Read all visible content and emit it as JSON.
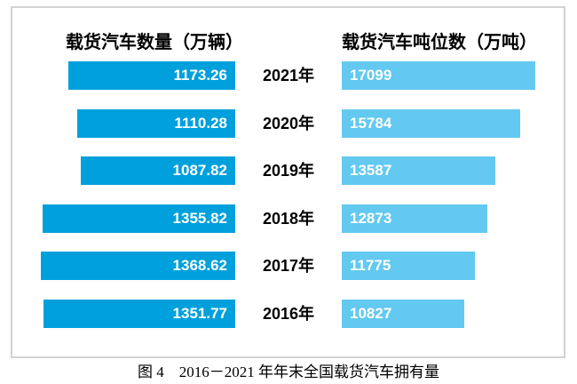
{
  "header": {
    "left_title": "载货汽车数量（万辆）",
    "right_title": "载货汽车吨位数（万吨）"
  },
  "caption": "图 4　2016－2021 年年末全国载货汽车拥有量",
  "colors": {
    "truck_count_bar": "#00A0DC",
    "tonnage_bar": "#63C9F0",
    "frame_border": "#d2d2d2",
    "bar_value_text": "#ffffff"
  },
  "rows": [
    {
      "year": "2021年",
      "count_label": "1173.26",
      "tonnage_label": "17099"
    },
    {
      "year": "2020年",
      "count_label": "1110.28",
      "tonnage_label": "15784"
    },
    {
      "year": "2019年",
      "count_label": "1087.82",
      "tonnage_label": "13587"
    },
    {
      "year": "2018年",
      "count_label": "1355.82",
      "tonnage_label": "12873"
    },
    {
      "year": "2017年",
      "count_label": "1368.62",
      "tonnage_label": "11775"
    },
    {
      "year": "2016年",
      "count_label": "1351.77",
      "tonnage_label": "10827"
    }
  ],
  "chart_data": {
    "type": "bar",
    "orientation": "horizontal-bidirectional",
    "categories": [
      "2021年",
      "2020年",
      "2019年",
      "2018年",
      "2017年",
      "2016年"
    ],
    "series": [
      {
        "name": "载货汽车数量（万辆）",
        "side": "left",
        "color": "#00A0DC",
        "values": [
          1173.26,
          1110.28,
          1087.82,
          1355.82,
          1368.62,
          1351.77
        ]
      },
      {
        "name": "载货汽车吨位数（万吨）",
        "side": "right",
        "color": "#63C9F0",
        "values": [
          17099,
          15784,
          13587,
          12873,
          11775,
          10827
        ]
      }
    ],
    "title": "图 4　2016－2021 年年末全国载货汽车拥有量",
    "value_labels_shown": true,
    "grid": false,
    "legend_position": "top-as-column-headers"
  }
}
